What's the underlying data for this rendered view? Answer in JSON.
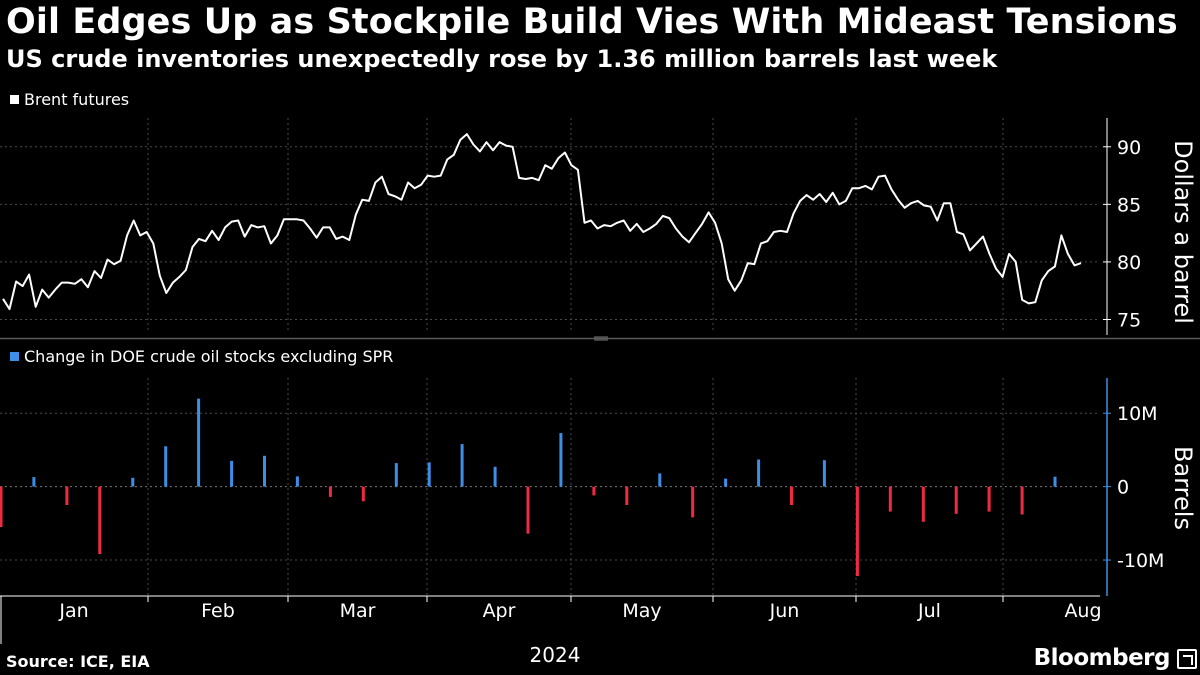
{
  "title": "Oil Edges Up as Stockpile Build Vies With Mideast Tensions",
  "subtitle": "US crude inventories unexpectedly rose by 1.36 million barrels last week",
  "source": "Source: ICE, EIA",
  "brand": "Bloomberg",
  "colors": {
    "background": "#000000",
    "line": "#ffffff",
    "positive": "#3d8ee6",
    "negative": "#ef2b44",
    "grid": "#4a4a4a"
  },
  "chart_data": [
    {
      "type": "line",
      "legend": "Brent futures",
      "ylabel": "Dollars a barrel",
      "ylim": [
        74,
        92.5
      ],
      "yticks": [
        75,
        80,
        85,
        90
      ],
      "x_domain": [
        0,
        222
      ],
      "values": [
        76.8,
        75.9,
        78.3,
        77.9,
        78.9,
        76.1,
        77.6,
        76.9,
        77.6,
        78.2,
        78.2,
        78.1,
        78.5,
        77.8,
        79.2,
        78.6,
        80.2,
        79.8,
        80.1,
        82.3,
        83.6,
        82.3,
        82.6,
        81.6,
        78.8,
        77.3,
        78.2,
        78.7,
        79.3,
        81.3,
        82.0,
        81.8,
        82.7,
        81.9,
        83.0,
        83.5,
        83.6,
        82.2,
        83.2,
        83.0,
        83.1,
        81.6,
        82.3,
        83.7,
        83.7,
        83.7,
        83.6,
        82.9,
        82.1,
        83.0,
        83.0,
        82.0,
        82.2,
        81.9,
        84.1,
        85.4,
        85.3,
        86.9,
        87.4,
        85.9,
        85.7,
        85.4,
        86.9,
        86.4,
        86.7,
        87.5,
        87.4,
        87.5,
        88.9,
        89.3,
        90.6,
        91.1,
        90.2,
        89.6,
        90.4,
        89.7,
        90.4,
        90.1,
        90.0,
        87.3,
        87.2,
        87.3,
        87.1,
        88.4,
        88.1,
        89.0,
        89.5,
        88.4,
        88.0,
        83.4,
        83.6,
        82.9,
        83.2,
        83.1,
        83.4,
        83.6,
        82.7,
        83.3,
        82.6,
        82.9,
        83.3,
        84.0,
        83.8,
        82.9,
        82.2,
        81.7,
        82.5,
        83.3,
        84.3,
        83.4,
        81.6,
        78.5,
        77.5,
        78.4,
        79.9,
        79.8,
        81.6,
        81.8,
        82.6,
        82.7,
        82.6,
        84.2,
        85.3,
        85.8,
        85.4,
        85.9,
        85.2,
        86.0,
        85.0,
        85.3,
        86.4,
        86.4,
        86.6,
        86.3,
        87.4,
        87.5,
        86.3,
        85.4,
        84.7,
        85.1,
        85.3,
        84.9,
        84.8,
        83.6,
        85.1,
        85.1,
        82.6,
        82.4,
        81.0,
        81.6,
        82.2,
        80.7,
        79.4,
        78.7,
        80.7,
        80.0,
        76.7,
        76.4,
        76.5,
        78.4,
        79.2,
        79.6,
        82.3,
        80.7,
        79.7,
        79.9
      ]
    },
    {
      "type": "bar",
      "legend": "Change in DOE crude oil stocks excluding SPR",
      "ylabel": "Barrels",
      "ylim": [
        -14.9,
        14.8
      ],
      "yticks": [
        10,
        0,
        -10
      ],
      "ytick_labels": [
        "10M",
        "0",
        "-10M"
      ],
      "unit": "million barrels",
      "values": [
        -5.5,
        1.3,
        -2.5,
        -9.2,
        1.2,
        5.5,
        12.0,
        3.5,
        4.2,
        1.4,
        -1.4,
        -2.0,
        3.2,
        3.3,
        5.8,
        2.7,
        -6.4,
        7.3,
        -1.2,
        -2.5,
        1.8,
        -4.2,
        1.1,
        3.7,
        -2.5,
        3.6,
        -12.2,
        -3.4,
        -4.8,
        -3.7,
        -3.4,
        -3.8,
        1.36
      ]
    }
  ],
  "x_axis": {
    "months": [
      "Jan",
      "Feb",
      "Mar",
      "Apr",
      "May",
      "Jun",
      "Jul",
      "Aug"
    ],
    "year": "2024"
  }
}
